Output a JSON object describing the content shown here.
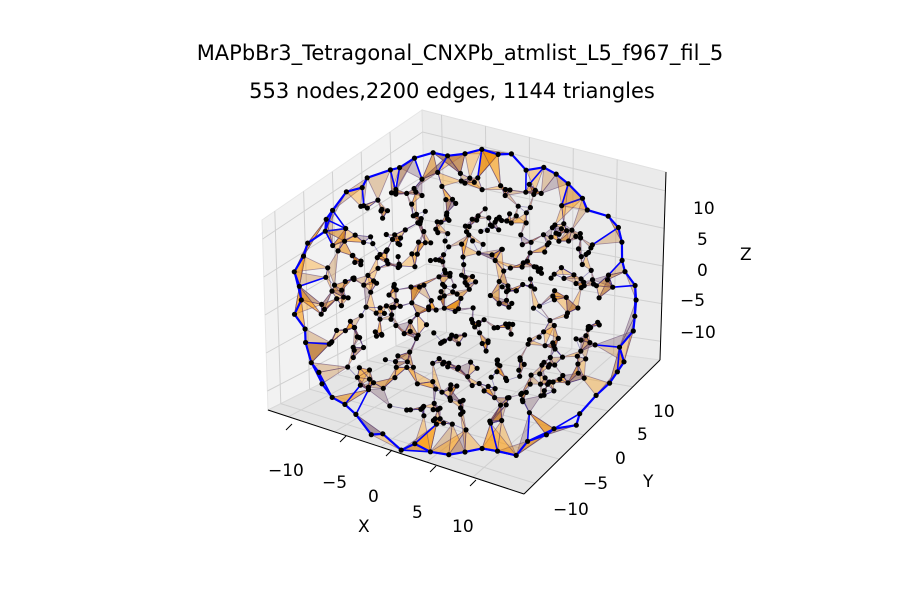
{
  "chart_data": {
    "type": "scatter",
    "title": "MAPbBr3_Tetragonal_CNXPb_atmlist_L5_f967_fil_5",
    "subtitle": "553 nodes,2200 edges, 1144 triangles",
    "xlabel": "X",
    "ylabel": "Y",
    "zlabel": "Z",
    "x_ticks": [
      "−10",
      "−5",
      "0",
      "5",
      "10"
    ],
    "y_ticks": [
      "−10",
      "−5",
      "0",
      "5",
      "10"
    ],
    "z_ticks": [
      "10",
      "5",
      "0",
      "−5",
      "−10"
    ],
    "xlim": [
      -14,
      14
    ],
    "ylim": [
      -14,
      14
    ],
    "zlim": [
      -14,
      14
    ],
    "nodes": 553,
    "edges": 2200,
    "triangles": 1144,
    "grid": true,
    "colors": {
      "nodes": "#000000",
      "edges": "#0000ff",
      "triangles": "#ff9900",
      "pane": "#f2f2f2",
      "grid": "#d0d0d0"
    }
  }
}
